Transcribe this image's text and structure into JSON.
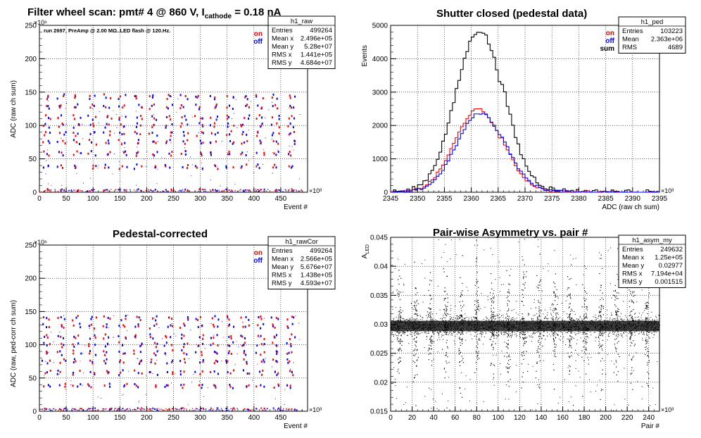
{
  "chart_data": [
    {
      "type": "scatter",
      "title": "Filter wheel scan: pmt#  4 @  860 V, I",
      "title_sub": "cathode",
      "title_tail": " = 0.18 nA",
      "annotation": "run 2697, PreAmp @ 2.00 MΩ..LED flash @  120.Hz.",
      "xlabel": "Event #",
      "ylabel": "ADC (raw ch sum)",
      "xexp": "×10³",
      "yexp": "×10⁶",
      "xlim": [
        0,
        500
      ],
      "ylim": [
        0,
        250
      ],
      "xticks": [
        "0",
        "50",
        "100",
        "150",
        "200",
        "250",
        "300",
        "350",
        "400",
        "450"
      ],
      "yticks": [
        "0",
        "50",
        "100",
        "150",
        "200",
        "250"
      ],
      "grid": true,
      "legend": [
        {
          "label": "on",
          "color": "#ff0000"
        },
        {
          "label": "off",
          "color": "#0000ff"
        }
      ],
      "stats": {
        "name": "h1_raw",
        "rows": [
          [
            "Entries",
            "499264"
          ],
          [
            "Mean x",
            "2.496e+05"
          ],
          [
            "Mean y",
            "5.28e+07"
          ],
          [
            "RMS x",
            "1.441e+05"
          ],
          [
            "RMS y",
            "4.684e+07"
          ]
        ]
      },
      "step_levels": [
        3,
        38,
        58,
        75,
        88,
        100,
        112,
        128,
        143
      ],
      "series": [
        {
          "name": "on",
          "color": "#ff0000"
        },
        {
          "name": "off",
          "color": "#0000ff"
        }
      ]
    },
    {
      "type": "line",
      "title": "Shutter closed (pedestal data)",
      "xlabel": "ADC (raw ch sum)",
      "ylabel": "Events",
      "xexp": "×10³",
      "xlim": [
        2345,
        2395
      ],
      "ylim": [
        0,
        5000
      ],
      "xticks": [
        "2345",
        "2350",
        "2355",
        "2360",
        "2365",
        "2370",
        "2375",
        "2380",
        "2385",
        "2390",
        "2395"
      ],
      "yticks": [
        "0",
        "1000",
        "2000",
        "3000",
        "4000",
        "5000"
      ],
      "grid": true,
      "legend": [
        {
          "label": "on",
          "color": "#ff0000"
        },
        {
          "label": "off",
          "color": "#0000ff"
        },
        {
          "label": "sum",
          "color": "#000000"
        }
      ],
      "stats": {
        "name": "h1_ped",
        "rows": [
          [
            "Entries",
            "103223"
          ],
          [
            "Mean",
            "2.363e+06"
          ],
          [
            "RMS",
            "4689"
          ]
        ]
      },
      "series": [
        {
          "name": "sum",
          "color": "#000000",
          "peak_x": 2361.5,
          "peak_y": 4850,
          "width": 4.4
        },
        {
          "name": "on",
          "color": "#ff0000",
          "peak_x": 2361.3,
          "peak_y": 2480,
          "width": 4.4
        },
        {
          "name": "off",
          "color": "#0000ff",
          "peak_x": 2361.7,
          "peak_y": 2370,
          "width": 4.4
        }
      ]
    },
    {
      "type": "scatter",
      "title": "Pedestal-corrected",
      "xlabel": "Event #",
      "ylabel": "ADC (raw, ped-corr ch sum)",
      "xexp": "×10³",
      "yexp": "×10⁶",
      "xlim": [
        0,
        500
      ],
      "ylim": [
        0,
        250
      ],
      "xticks": [
        "0",
        "50",
        "100",
        "150",
        "200",
        "250",
        "300",
        "350",
        "400",
        "450"
      ],
      "yticks": [
        "0",
        "50",
        "100",
        "150",
        "200",
        "250"
      ],
      "grid": true,
      "legend": [
        {
          "label": "on",
          "color": "#ff0000"
        },
        {
          "label": "off",
          "color": "#0000ff"
        }
      ],
      "stats": {
        "name": "h1_rawCor",
        "rows": [
          [
            "Entries",
            "499264"
          ],
          [
            "Mean x",
            "2.566e+05"
          ],
          [
            "Mean y",
            "5.676e+07"
          ],
          [
            "RMS x",
            "1.438e+05"
          ],
          [
            "RMS y",
            "4.593e+07"
          ]
        ]
      },
      "step_levels": [
        3,
        38,
        58,
        75,
        88,
        100,
        112,
        128,
        140
      ],
      "series": [
        {
          "name": "on",
          "color": "#ff0000"
        },
        {
          "name": "off",
          "color": "#0000ff"
        }
      ]
    },
    {
      "type": "scatter",
      "title": "Pair-wise Asymmetry vs. pair #",
      "xlabel": "Pair #",
      "ylabel": "A",
      "ylabel_sub": "LED",
      "xexp": "×10³",
      "xlim": [
        0,
        250
      ],
      "ylim": [
        0.015,
        0.045
      ],
      "xticks": [
        "0",
        "20",
        "40",
        "60",
        "80",
        "100",
        "120",
        "140",
        "160",
        "180",
        "200",
        "220",
        "240"
      ],
      "yticks": [
        "0.015",
        "0.02",
        "0.025",
        "0.03",
        "0.035",
        "0.04",
        "0.045"
      ],
      "grid": true,
      "stats": {
        "name": "h1_asym_my",
        "rows": [
          [
            "Entries",
            "249632"
          ],
          [
            "Mean x",
            "1.25e+05"
          ],
          [
            "Mean y",
            "0.02977"
          ],
          [
            "RMS x",
            "7.194e+04"
          ],
          [
            "RMS y",
            "0.001515"
          ]
        ]
      },
      "band_center": 0.0297,
      "series": [
        {
          "name": "asym",
          "color": "#000000"
        }
      ]
    }
  ]
}
